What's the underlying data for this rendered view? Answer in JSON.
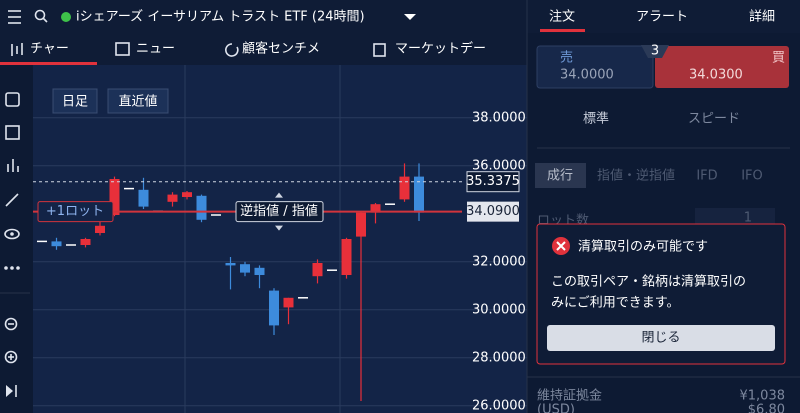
{
  "header": {
    "title": "iシェアーズ イーサリアム トラスト ETF (24時間)",
    "tabs": [
      "注文",
      "アラート",
      "詳細"
    ]
  },
  "subtabs": [
    "チャー",
    "ニュー",
    "顧客センチメ",
    "マーケットデー"
  ],
  "chart_toolbar": [
    "日足",
    "直近値"
  ],
  "chart_data": {
    "type": "candlestick",
    "ylim": [
      25.7,
      40.2
    ],
    "yticks": [
      {
        "value": 38,
        "label": "38.0000"
      },
      {
        "value": 36,
        "label": "36.0000"
      },
      {
        "value": 32,
        "label": "32.0000"
      },
      {
        "value": 30,
        "label": "30.0000"
      },
      {
        "value": 28,
        "label": "28.0000"
      },
      {
        "value": 26,
        "label": "26.0000"
      }
    ],
    "grid": true,
    "up_color": "#e8303a",
    "down_color": "#3d8bdc",
    "flat_color": "#ffffff",
    "price_lines": [
      {
        "value": 35.3375,
        "label": "35.3375"
      },
      {
        "value": 34.09,
        "label": "34.0900"
      }
    ],
    "order_labels": [
      "+1ロット",
      "逆指値 / 指値"
    ],
    "candles": [
      {
        "open": 32.85,
        "high": 32.85,
        "low": 32.85,
        "close": 32.85
      },
      {
        "open": 32.85,
        "high": 33.0,
        "low": 32.5,
        "close": 32.65
      },
      {
        "open": 32.7,
        "high": 32.7,
        "low": 32.7,
        "close": 32.7
      },
      {
        "open": 32.7,
        "high": 33.0,
        "low": 32.6,
        "close": 32.95
      },
      {
        "open": 33.2,
        "high": 33.7,
        "low": 33.1,
        "close": 33.5
      },
      {
        "open": 33.95,
        "high": 35.55,
        "low": 33.9,
        "close": 35.45
      },
      {
        "open": 35.05,
        "high": 35.05,
        "low": 35.05,
        "close": 35.05
      },
      {
        "open": 35.0,
        "high": 35.5,
        "low": 34.2,
        "close": 34.3
      },
      {
        "open": 34.1,
        "high": 34.1,
        "low": 34.1,
        "close": 34.1
      },
      {
        "open": 34.5,
        "high": 34.9,
        "low": 34.3,
        "close": 34.8
      },
      {
        "open": 34.7,
        "high": 34.95,
        "low": 34.6,
        "close": 34.9
      },
      {
        "open": 34.75,
        "high": 34.8,
        "low": 33.65,
        "close": 33.75
      },
      {
        "open": 33.95,
        "high": 33.95,
        "low": 33.95,
        "close": 33.95
      },
      {
        "open": 31.95,
        "high": 32.2,
        "low": 30.85,
        "close": 31.85
      },
      {
        "open": 31.9,
        "high": 32.0,
        "low": 31.4,
        "close": 31.55
      },
      {
        "open": 31.75,
        "high": 31.85,
        "low": 30.9,
        "close": 31.45
      },
      {
        "open": 30.8,
        "high": 30.9,
        "low": 28.95,
        "close": 29.35
      },
      {
        "open": 30.1,
        "high": 30.5,
        "low": 29.4,
        "close": 30.5
      },
      {
        "open": 30.5,
        "high": 30.5,
        "low": 30.5,
        "close": 30.5
      },
      {
        "open": 31.4,
        "high": 32.1,
        "low": 31.1,
        "close": 31.95
      },
      {
        "open": 31.65,
        "high": 31.65,
        "low": 31.65,
        "close": 31.65
      },
      {
        "open": 31.45,
        "high": 33.0,
        "low": 31.3,
        "close": 32.95
      },
      {
        "open": 33.05,
        "high": 34.1,
        "low": 26.2,
        "close": 34.05
      },
      {
        "open": 34.05,
        "high": 34.45,
        "low": 33.6,
        "close": 34.4
      },
      {
        "open": 34.4,
        "high": 34.4,
        "low": 34.4,
        "close": 34.4
      },
      {
        "open": 34.6,
        "high": 36.1,
        "low": 34.5,
        "close": 35.55
      },
      {
        "open": 35.55,
        "high": 36.1,
        "low": 33.7,
        "close": 34.05
      }
    ]
  },
  "order": {
    "sell_label": "売",
    "sell_price": "34.0000",
    "spread": 3,
    "buy_label": "買",
    "buy_price": "34.0300",
    "modes": [
      "標準",
      "スピード"
    ],
    "types": [
      "成行",
      "指値・逆指値",
      "IFD",
      "IFO"
    ],
    "lot_label": "ロット数",
    "lot_value": 1,
    "margin_label": "維持証拠金",
    "margin_unit": "(USD)",
    "margin_jpy": "¥1,038",
    "margin_usd": "$6.80"
  },
  "modal": {
    "title": "清算取引のみ可能です",
    "body_lines": [
      "この取引ペア・銘柄は清算取引の",
      "みにご利用できます。"
    ],
    "button": "閉じる"
  }
}
